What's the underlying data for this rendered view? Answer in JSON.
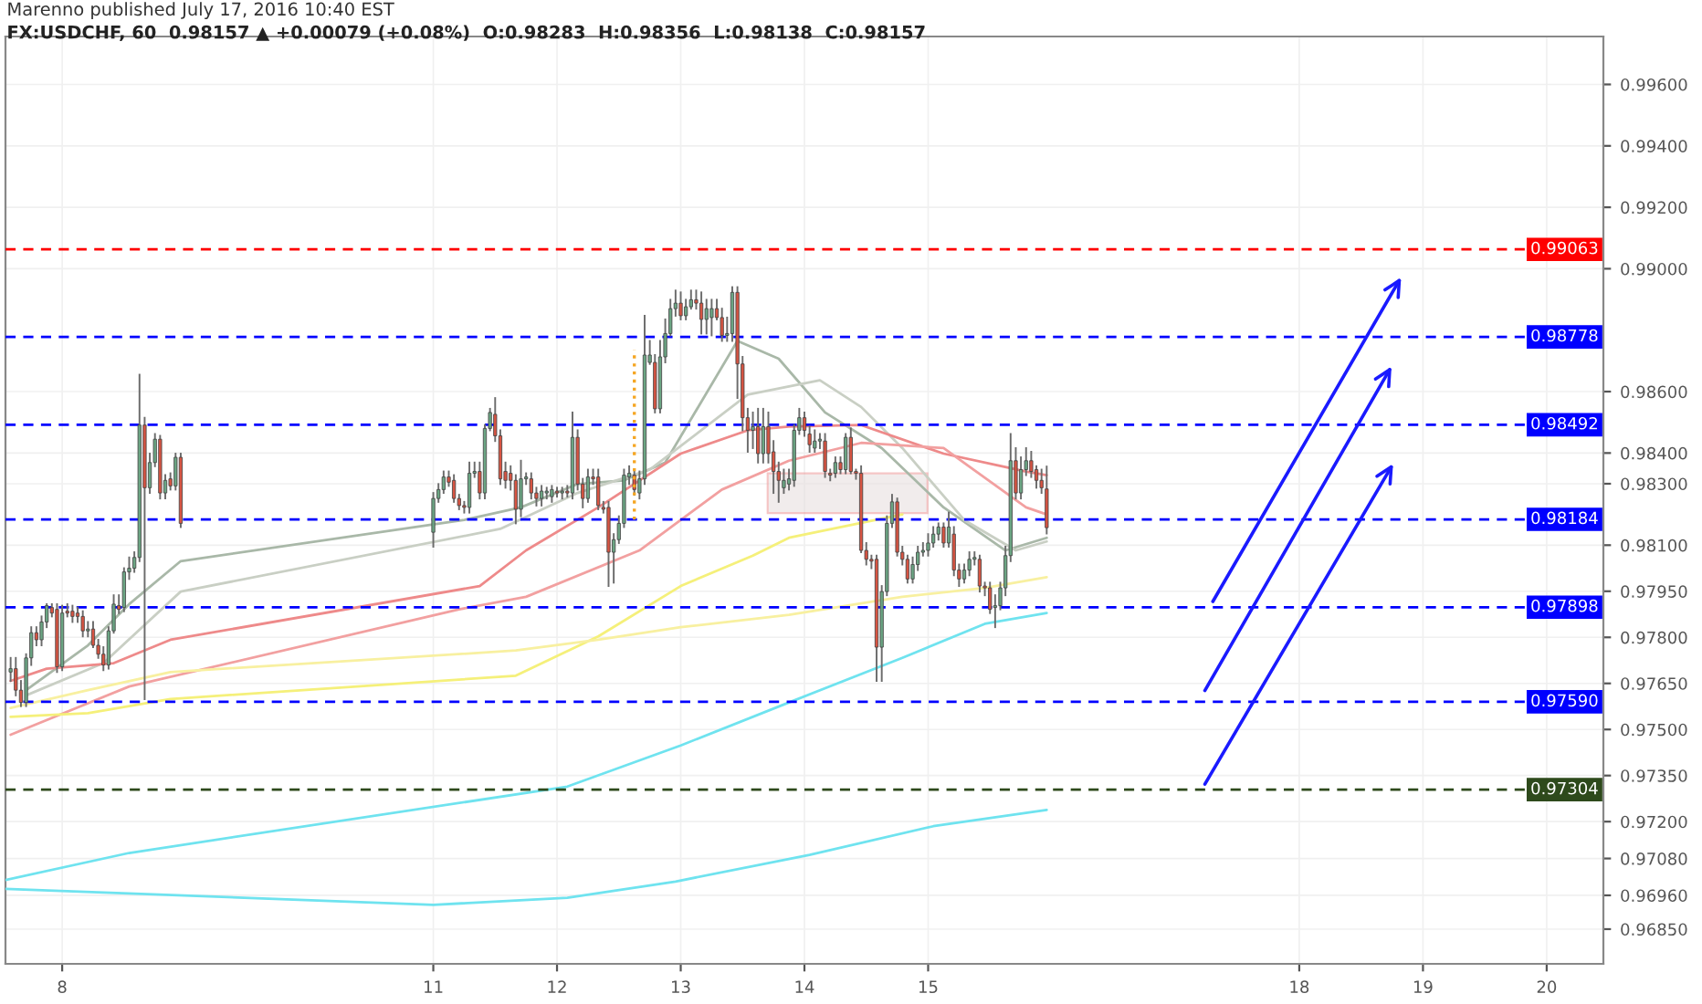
{
  "chart_data": {
    "type": "candlestick",
    "title": "FX:USDCHF, 60  0.98157 ▲ +0.00079 (+0.08%)  O:0.98283  H:0.98356  L:0.98138  C:0.98157",
    "subtitle": "Marenno published July 17, 2016 10:40 EST",
    "x": [
      "2016-07-07T14:00",
      "2016-07-07T15:00",
      "2016-07-07T16:00",
      "2016-07-07T17:00",
      "2016-07-07T18:00",
      "2016-07-07T19:00",
      "2016-07-07T20:00",
      "2016-07-07T21:00",
      "2016-07-07T22:00",
      "2016-07-07T23:00",
      "2016-07-08T00:00",
      "2016-07-08T01:00",
      "2016-07-08T02:00",
      "2016-07-08T03:00",
      "2016-07-08T04:00",
      "2016-07-08T05:00",
      "2016-07-08T06:00",
      "2016-07-08T07:00",
      "2016-07-08T08:00",
      "2016-07-08T09:00",
      "2016-07-08T10:00",
      "2016-07-08T11:00",
      "2016-07-08T12:00",
      "2016-07-08T13:00",
      "2016-07-08T14:00",
      "2016-07-08T15:00",
      "2016-07-08T16:00",
      "2016-07-08T17:00",
      "2016-07-08T18:00",
      "2016-07-08T19:00",
      "2016-07-08T20:00",
      "2016-07-08T21:00",
      "2016-07-08T22:00",
      "2016-07-08T23:00",
      "2016-07-11T00:00",
      "2016-07-11T01:00",
      "2016-07-11T02:00",
      "2016-07-11T03:00",
      "2016-07-11T04:00",
      "2016-07-11T05:00",
      "2016-07-11T06:00",
      "2016-07-11T07:00",
      "2016-07-11T08:00",
      "2016-07-11T09:00",
      "2016-07-11T10:00",
      "2016-07-11T11:00",
      "2016-07-11T12:00",
      "2016-07-11T13:00",
      "2016-07-11T14:00",
      "2016-07-11T15:00",
      "2016-07-11T16:00",
      "2016-07-11T17:00",
      "2016-07-11T18:00",
      "2016-07-11T19:00",
      "2016-07-11T20:00",
      "2016-07-11T21:00",
      "2016-07-11T22:00",
      "2016-07-11T23:00",
      "2016-07-12T00:00",
      "2016-07-12T01:00",
      "2016-07-12T02:00",
      "2016-07-12T03:00",
      "2016-07-12T04:00",
      "2016-07-12T05:00",
      "2016-07-12T06:00",
      "2016-07-12T07:00",
      "2016-07-12T08:00",
      "2016-07-12T09:00",
      "2016-07-12T10:00",
      "2016-07-12T11:00",
      "2016-07-12T12:00",
      "2016-07-12T13:00",
      "2016-07-12T14:00",
      "2016-07-12T15:00",
      "2016-07-12T16:00",
      "2016-07-12T17:00",
      "2016-07-12T18:00",
      "2016-07-12T19:00",
      "2016-07-12T20:00",
      "2016-07-12T21:00",
      "2016-07-12T22:00",
      "2016-07-12T23:00",
      "2016-07-13T00:00",
      "2016-07-13T01:00",
      "2016-07-13T02:00",
      "2016-07-13T03:00",
      "2016-07-13T04:00",
      "2016-07-13T05:00",
      "2016-07-13T06:00",
      "2016-07-13T07:00",
      "2016-07-13T08:00",
      "2016-07-13T09:00",
      "2016-07-13T10:00",
      "2016-07-13T11:00",
      "2016-07-13T12:00",
      "2016-07-13T13:00",
      "2016-07-13T14:00",
      "2016-07-13T15:00",
      "2016-07-13T16:00",
      "2016-07-13T17:00",
      "2016-07-13T18:00",
      "2016-07-13T19:00",
      "2016-07-13T20:00",
      "2016-07-13T21:00",
      "2016-07-13T22:00",
      "2016-07-13T23:00",
      "2016-07-14T00:00",
      "2016-07-14T01:00",
      "2016-07-14T02:00",
      "2016-07-14T03:00",
      "2016-07-14T04:00",
      "2016-07-14T05:00",
      "2016-07-14T06:00",
      "2016-07-14T07:00",
      "2016-07-14T08:00",
      "2016-07-14T09:00",
      "2016-07-14T10:00",
      "2016-07-14T11:00",
      "2016-07-14T12:00",
      "2016-07-14T13:00",
      "2016-07-14T14:00",
      "2016-07-14T15:00",
      "2016-07-14T16:00",
      "2016-07-14T17:00",
      "2016-07-14T18:00",
      "2016-07-14T19:00",
      "2016-07-14T20:00",
      "2016-07-14T21:00",
      "2016-07-14T22:00",
      "2016-07-14T23:00",
      "2016-07-15T00:00",
      "2016-07-15T01:00",
      "2016-07-15T02:00",
      "2016-07-15T03:00",
      "2016-07-15T04:00",
      "2016-07-15T05:00",
      "2016-07-15T06:00",
      "2016-07-15T07:00",
      "2016-07-15T08:00",
      "2016-07-15T09:00",
      "2016-07-15T10:00",
      "2016-07-15T11:00",
      "2016-07-15T12:00",
      "2016-07-15T13:00",
      "2016-07-15T14:00",
      "2016-07-15T15:00",
      "2016-07-15T16:00",
      "2016-07-15T17:00",
      "2016-07-15T18:00",
      "2016-07-15T19:00",
      "2016-07-15T20:00",
      "2016-07-15T21:00",
      "2016-07-15T22:00",
      "2016-07-15T23:00"
    ],
    "ohlc": [
      [
        0.97687,
        0.97733,
        0.97658,
        0.97698
      ],
      [
        0.97698,
        0.97733,
        0.97611,
        0.97628
      ],
      [
        0.97628,
        0.97658,
        0.97576,
        0.97588
      ],
      [
        0.97588,
        0.97745,
        0.97576,
        0.97733
      ],
      [
        0.97733,
        0.97833,
        0.9771,
        0.97815
      ],
      [
        0.97815,
        0.97833,
        0.97774,
        0.97792
      ],
      [
        0.97792,
        0.97868,
        0.97774,
        0.9785
      ],
      [
        0.9785,
        0.97908,
        0.97833,
        0.97903
      ],
      [
        0.97897,
        0.97908,
        0.97868,
        0.97879
      ],
      [
        0.97891,
        0.97908,
        0.97687,
        0.97704
      ],
      [
        0.97704,
        0.97903,
        0.97693,
        0.97879
      ],
      [
        0.97885,
        0.97908,
        0.97868,
        0.97879
      ],
      [
        0.97885,
        0.97903,
        0.9785,
        0.97868
      ],
      [
        0.97879,
        0.97897,
        0.9785,
        0.97868
      ],
      [
        0.97868,
        0.97885,
        0.97803,
        0.97821
      ],
      [
        0.97821,
        0.9785,
        0.97803,
        0.97827
      ],
      [
        0.97827,
        0.9785,
        0.97768,
        0.97774
      ],
      [
        0.97774,
        0.97792,
        0.97733,
        0.97745
      ],
      [
        0.97745,
        0.97768,
        0.97693,
        0.9771
      ],
      [
        0.9771,
        0.97833,
        0.97698,
        0.97821
      ],
      [
        0.97821,
        0.97937,
        0.97815,
        0.97908
      ],
      [
        0.97903,
        0.97937,
        0.97879,
        0.97891
      ],
      [
        0.97897,
        0.98025,
        0.97885,
        0.98013
      ],
      [
        0.98013,
        0.9806,
        0.9799,
        0.98025
      ],
      [
        0.98025,
        0.98077,
        0.98013,
        0.9806
      ],
      [
        0.9806,
        0.98655,
        0.98048,
        0.98491
      ],
      [
        0.98491,
        0.98515,
        0.97599,
        0.98287
      ],
      [
        0.98287,
        0.98398,
        0.9827,
        0.98369
      ],
      [
        0.98369,
        0.98462,
        0.98357,
        0.98445
      ],
      [
        0.98445,
        0.98456,
        0.98252,
        0.9827
      ],
      [
        0.9827,
        0.98328,
        0.98252,
        0.98311
      ],
      [
        0.98316,
        0.98334,
        0.98281,
        0.98293
      ],
      [
        0.98293,
        0.98398,
        0.98281,
        0.98386
      ],
      [
        0.98386,
        0.98398,
        0.98159,
        0.98171
      ],
      [
        0.98142,
        0.9827,
        0.98095,
        0.98252
      ],
      [
        0.98252,
        0.98299,
        0.98241,
        0.98281
      ],
      [
        0.98281,
        0.9834,
        0.9827,
        0.98322
      ],
      [
        0.98322,
        0.9834,
        0.98293,
        0.98305
      ],
      [
        0.98311,
        0.98328,
        0.98241,
        0.98252
      ],
      [
        0.98252,
        0.98264,
        0.98217,
        0.98229
      ],
      [
        0.98229,
        0.98241,
        0.98206,
        0.98223
      ],
      [
        0.98223,
        0.98369,
        0.98206,
        0.98334
      ],
      [
        0.98334,
        0.98369,
        0.98322,
        0.9834
      ],
      [
        0.9834,
        0.98369,
        0.98252,
        0.9827
      ],
      [
        0.9827,
        0.98491,
        0.98252,
        0.9848
      ],
      [
        0.9848,
        0.98544,
        0.98474,
        0.98532
      ],
      [
        0.98526,
        0.98579,
        0.98439,
        0.98456
      ],
      [
        0.98456,
        0.98474,
        0.98299,
        0.98316
      ],
      [
        0.9834,
        0.98369,
        0.98287,
        0.98311
      ],
      [
        0.98334,
        0.98357,
        0.98281,
        0.98311
      ],
      [
        0.98311,
        0.98328,
        0.98171,
        0.98217
      ],
      [
        0.98217,
        0.98375,
        0.98194,
        0.98316
      ],
      [
        0.98316,
        0.98334,
        0.98299,
        0.98322
      ],
      [
        0.98316,
        0.98334,
        0.98252,
        0.9827
      ],
      [
        0.9827,
        0.98287,
        0.98229,
        0.98252
      ],
      [
        0.98252,
        0.98293,
        0.98229,
        0.98276
      ],
      [
        0.9827,
        0.98287,
        0.98252,
        0.98276
      ],
      [
        0.98258,
        0.98293,
        0.98241,
        0.98281
      ],
      [
        0.98276,
        0.98287,
        0.98258,
        0.9827
      ],
      [
        0.9827,
        0.98287,
        0.98252,
        0.98276
      ],
      [
        0.98276,
        0.98293,
        0.98258,
        0.9827
      ],
      [
        0.9827,
        0.98532,
        0.98252,
        0.98451
      ],
      [
        0.98451,
        0.98474,
        0.98281,
        0.98299
      ],
      [
        0.98299,
        0.98316,
        0.98223,
        0.98252
      ],
      [
        0.98252,
        0.98346,
        0.98241,
        0.98322
      ],
      [
        0.98322,
        0.98346,
        0.98299,
        0.98316
      ],
      [
        0.98322,
        0.98346,
        0.98217,
        0.98229
      ],
      [
        0.98223,
        0.98241,
        0.98206,
        0.98217
      ],
      [
        0.98223,
        0.98241,
        0.97967,
        0.98077
      ],
      [
        0.98077,
        0.98136,
        0.97978,
        0.98118
      ],
      [
        0.98118,
        0.98194,
        0.98107,
        0.98171
      ],
      [
        0.98171,
        0.98346,
        0.98159,
        0.98328
      ],
      [
        0.98322,
        0.98357,
        0.98299,
        0.98334
      ],
      [
        0.98328,
        0.98346,
        0.98264,
        0.98281
      ],
      [
        0.9827,
        0.9834,
        0.98252,
        0.98316
      ],
      [
        0.98316,
        0.98847,
        0.98299,
        0.98719
      ],
      [
        0.98695,
        0.98765,
        0.9869,
        0.98719
      ],
      [
        0.98695,
        0.98719,
        0.98532,
        0.98544
      ],
      [
        0.98544,
        0.98765,
        0.98532,
        0.98713
      ],
      [
        0.98713,
        0.98835,
        0.98695,
        0.98789
      ],
      [
        0.98789,
        0.98899,
        0.98783,
        0.9887
      ],
      [
        0.9887,
        0.98929,
        0.98847,
        0.98888
      ],
      [
        0.98888,
        0.98923,
        0.98835,
        0.98847
      ],
      [
        0.98847,
        0.98899,
        0.98835,
        0.98876
      ],
      [
        0.98876,
        0.98929,
        0.9887,
        0.98899
      ],
      [
        0.98899,
        0.98929,
        0.9887,
        0.98888
      ],
      [
        0.98888,
        0.98923,
        0.98789,
        0.98835
      ],
      [
        0.98835,
        0.98899,
        0.98789,
        0.9887
      ],
      [
        0.98841,
        0.98899,
        0.98783,
        0.9887
      ],
      [
        0.9887,
        0.98899,
        0.98835,
        0.98841
      ],
      [
        0.98841,
        0.9887,
        0.98765,
        0.98783
      ],
      [
        0.98783,
        0.98841,
        0.98765,
        0.98789
      ],
      [
        0.98789,
        0.9894,
        0.98765,
        0.98923
      ],
      [
        0.98923,
        0.9894,
        0.98579,
        0.9869
      ],
      [
        0.9869,
        0.98713,
        0.98474,
        0.98515
      ],
      [
        0.98515,
        0.98544,
        0.98404,
        0.98474
      ],
      [
        0.98474,
        0.98532,
        0.98416,
        0.98486
      ],
      [
        0.98486,
        0.98544,
        0.98369,
        0.98398
      ],
      [
        0.98398,
        0.98544,
        0.98369,
        0.98486
      ],
      [
        0.98486,
        0.98532,
        0.98369,
        0.98398
      ],
      [
        0.98404,
        0.98439,
        0.9827,
        0.9834
      ],
      [
        0.9834,
        0.98369,
        0.98241,
        0.98311
      ],
      [
        0.98287,
        0.98346,
        0.9827,
        0.98311
      ],
      [
        0.98299,
        0.98346,
        0.98281,
        0.98316
      ],
      [
        0.98311,
        0.98491,
        0.98293,
        0.98474
      ],
      [
        0.98474,
        0.98544,
        0.98462,
        0.98515
      ],
      [
        0.98515,
        0.98532,
        0.98456,
        0.98474
      ],
      [
        0.98462,
        0.98486,
        0.98404,
        0.98427
      ],
      [
        0.98416,
        0.98474,
        0.98404,
        0.98439
      ],
      [
        0.98439,
        0.98462,
        0.98416,
        0.98445
      ],
      [
        0.98439,
        0.98462,
        0.98322,
        0.9834
      ],
      [
        0.98334,
        0.98346,
        0.98311,
        0.98328
      ],
      [
        0.98334,
        0.98386,
        0.98322,
        0.98369
      ],
      [
        0.98369,
        0.98386,
        0.98334,
        0.98346
      ],
      [
        0.98346,
        0.98462,
        0.98334,
        0.98451
      ],
      [
        0.98451,
        0.9848,
        0.98334,
        0.9834
      ],
      [
        0.9834,
        0.98346,
        0.98316,
        0.98334
      ],
      [
        0.98334,
        0.98357,
        0.98077,
        0.98083
      ],
      [
        0.98083,
        0.98107,
        0.98037,
        0.98054
      ],
      [
        0.98054,
        0.98066,
        0.98025,
        0.98048
      ],
      [
        0.98054,
        0.98066,
        0.97658,
        0.97768
      ],
      [
        0.97768,
        0.97967,
        0.97658,
        0.97949
      ],
      [
        0.97949,
        0.98194,
        0.97937,
        0.98171
      ],
      [
        0.98171,
        0.98264,
        0.98159,
        0.98241
      ],
      [
        0.98241,
        0.98252,
        0.98066,
        0.98077
      ],
      [
        0.98077,
        0.98095,
        0.98037,
        0.98054
      ],
      [
        0.98054,
        0.98066,
        0.97978,
        0.9799
      ],
      [
        0.9799,
        0.9806,
        0.97978,
        0.98037
      ],
      [
        0.98037,
        0.98095,
        0.98019,
        0.98077
      ],
      [
        0.98077,
        0.98107,
        0.98066,
        0.98083
      ],
      [
        0.98083,
        0.98136,
        0.98066,
        0.98107
      ],
      [
        0.98107,
        0.98159,
        0.98095,
        0.98136
      ],
      [
        0.98136,
        0.98171,
        0.98118,
        0.98159
      ],
      [
        0.98159,
        0.98171,
        0.98095,
        0.98107
      ],
      [
        0.98107,
        0.98206,
        0.98095,
        0.98159
      ],
      [
        0.98136,
        0.98159,
        0.98002,
        0.98019
      ],
      [
        0.98019,
        0.98037,
        0.97967,
        0.9799
      ],
      [
        0.9799,
        0.98037,
        0.97978,
        0.98019
      ],
      [
        0.98019,
        0.98077,
        0.98002,
        0.98054
      ],
      [
        0.98054,
        0.98077,
        0.98037,
        0.9806
      ],
      [
        0.98054,
        0.98066,
        0.97949,
        0.97967
      ],
      [
        0.97967,
        0.97978,
        0.97937,
        0.97961
      ],
      [
        0.97961,
        0.97978,
        0.97879,
        0.97891
      ],
      [
        0.97897,
        0.97937,
        0.97833,
        0.97903
      ],
      [
        0.97903,
        0.97978,
        0.97891,
        0.97961
      ],
      [
        0.97961,
        0.98095,
        0.97937,
        0.98066
      ],
      [
        0.98066,
        0.98462,
        0.98048,
        0.98375
      ],
      [
        0.98375,
        0.98416,
        0.98252,
        0.9827
      ],
      [
        0.9827,
        0.98386,
        0.98252,
        0.98346
      ],
      [
        0.98346,
        0.98416,
        0.98328,
        0.98375
      ],
      [
        0.98375,
        0.98404,
        0.98322,
        0.9834
      ],
      [
        0.98346,
        0.98357,
        0.98287,
        0.98311
      ],
      [
        0.98311,
        0.98346,
        0.9827,
        0.98287
      ],
      [
        0.98283,
        0.98356,
        0.98138,
        0.98157
      ]
    ],
    "series": [
      {
        "type": "line",
        "color": "#a9b8a8",
        "x": [
          "2016-07-07T17:00",
          "2016-07-08T05:00",
          "2016-07-08T13:00",
          "2016-07-08T23:00",
          "2016-07-11T06:00",
          "2016-07-11T17:00",
          "2016-07-12T04:00",
          "2016-07-12T13:00",
          "2016-07-12T21:00",
          "2016-07-13T11:00",
          "2016-07-13T19:00",
          "2016-07-14T04:00",
          "2016-07-14T15:00",
          "2016-07-15T03:00",
          "2016-07-15T15:00",
          "2016-07-15T23:00"
        ],
        "values": [
          0.97628,
          0.97774,
          0.97908,
          0.98048,
          0.98182,
          0.98223,
          0.98299,
          0.98311,
          0.98369,
          0.98765,
          0.98707,
          0.98532,
          0.98416,
          0.98223,
          0.98083,
          0.98124
        ]
      },
      {
        "type": "line",
        "color": "#c9cfc4",
        "x": [
          "2016-07-07T17:00",
          "2016-07-08T08:00",
          "2016-07-08T23:00",
          "2016-07-11T13:00",
          "2016-07-12T04:00",
          "2016-07-12T18:00",
          "2016-07-13T13:00",
          "2016-07-14T03:00",
          "2016-07-14T11:00",
          "2016-07-14T19:00",
          "2016-07-15T07:00",
          "2016-07-15T17:00",
          "2016-07-15T23:00"
        ],
        "values": [
          0.97611,
          0.97716,
          0.97949,
          0.98153,
          0.9827,
          0.98346,
          0.9859,
          0.98637,
          0.9855,
          0.98416,
          0.98182,
          0.98083,
          0.98112
        ]
      },
      {
        "type": "line",
        "color": "#ee8a8a",
        "x": [
          "2016-07-07T14:00",
          "2016-07-07T21:00",
          "2016-07-08T10:00",
          "2016-07-08T21:00",
          "2016-07-11T09:00",
          "2016-07-11T18:00",
          "2016-07-12T08:00",
          "2016-07-13T00:00",
          "2016-07-13T13:00",
          "2016-07-13T21:00",
          "2016-07-14T11:00",
          "2016-07-15T03:00",
          "2016-07-15T19:00",
          "2016-07-15T23:00"
        ],
        "values": [
          0.97658,
          0.97698,
          0.97716,
          0.97792,
          0.97967,
          0.98083,
          0.98223,
          0.98398,
          0.98474,
          0.98486,
          0.98491,
          0.98398,
          0.9834,
          0.98328
        ]
      },
      {
        "type": "line",
        "color": "#f2a0a0",
        "x": [
          "2016-07-07T14:00",
          "2016-07-08T13:00",
          "2016-07-11T05:00",
          "2016-07-11T18:00",
          "2016-07-12T16:00",
          "2016-07-13T08:00",
          "2016-07-13T21:00",
          "2016-07-14T11:00",
          "2016-07-15T03:00",
          "2016-07-15T19:00",
          "2016-07-15T23:00"
        ],
        "values": [
          0.97483,
          0.9764,
          0.97891,
          0.97932,
          0.98083,
          0.98281,
          0.98375,
          0.98433,
          0.98416,
          0.98223,
          0.982
        ]
      },
      {
        "type": "line",
        "color": "#f5f07a",
        "x": [
          "2016-07-07T14:00",
          "2016-07-08T05:00",
          "2016-07-08T21:00",
          "2016-07-11T16:00",
          "2016-07-12T08:00",
          "2016-07-13T00:00",
          "2016-07-13T14:00",
          "2016-07-13T21:00",
          "2016-07-14T19:00"
        ],
        "values": [
          0.97541,
          0.97553,
          0.97599,
          0.97675,
          0.97803,
          0.97967,
          0.98066,
          0.98124,
          0.982
        ]
      },
      {
        "type": "line",
        "color": "#f8f0a0",
        "x": [
          "2016-07-07T14:00",
          "2016-07-08T05:00",
          "2016-07-08T21:00",
          "2016-07-11T16:00",
          "2016-07-12T08:00",
          "2016-07-13T00:00",
          "2016-07-13T21:00",
          "2016-07-14T19:00",
          "2016-07-15T11:00",
          "2016-07-15T23:00"
        ],
        "values": [
          0.9757,
          0.97628,
          0.97687,
          0.97757,
          0.97792,
          0.97833,
          0.97873,
          0.97932,
          0.97961,
          0.97996
        ]
      },
      {
        "type": "line",
        "color": "#6fe3ef",
        "x": [
          "2016-07-07T13:00",
          "2016-07-08T13:00",
          "2016-07-12T02:00",
          "2016-07-13T00:00",
          "2016-07-13T21:00",
          "2016-07-14T19:00",
          "2016-07-15T11:00",
          "2016-07-15T23:00"
        ],
        "values": [
          0.9701,
          0.97098,
          0.97314,
          0.97448,
          0.97588,
          0.97733,
          0.97844,
          0.97879
        ]
      },
      {
        "type": "line",
        "color": "#6fe3ef",
        "x": [
          "2016-07-07T13:00",
          "2016-07-11T00:00",
          "2016-07-12T02:00",
          "2016-07-12T23:00",
          "2016-07-14T01:00",
          "2016-07-15T01:00",
          "2016-07-15T23:00"
        ],
        "values": [
          0.96981,
          0.96929,
          0.96952,
          0.97005,
          0.97092,
          0.97185,
          0.97238
        ]
      }
    ],
    "xlim": [
      "2016-07-07T13:00",
      "2016-07-20T11:00"
    ],
    "ylim": [
      0.96737,
      0.99756
    ],
    "xticks": [
      {
        "value": "2016-07-08",
        "label": "8"
      },
      {
        "value": "2016-07-11",
        "label": "11"
      },
      {
        "value": "2016-07-12",
        "label": "12"
      },
      {
        "value": "2016-07-13",
        "label": "13"
      },
      {
        "value": "2016-07-14",
        "label": "14"
      },
      {
        "value": "2016-07-15",
        "label": "15"
      },
      {
        "value": "2016-07-18",
        "label": "18"
      },
      {
        "value": "2016-07-19",
        "label": "19"
      },
      {
        "value": "2016-07-20",
        "label": "20"
      }
    ],
    "yticks": [
      {
        "value": 0.996,
        "label": "0.99600"
      },
      {
        "value": 0.994,
        "label": "0.99400"
      },
      {
        "value": 0.992,
        "label": "0.99200"
      },
      {
        "value": 0.99,
        "label": "0.99000"
      },
      {
        "value": 0.986,
        "label": "0.98600"
      },
      {
        "value": 0.984,
        "label": "0.98400"
      },
      {
        "value": 0.983,
        "label": "0.98300"
      },
      {
        "value": 0.981,
        "label": "0.98100"
      },
      {
        "value": 0.9795,
        "label": "0.97950"
      },
      {
        "value": 0.978,
        "label": "0.97800"
      },
      {
        "value": 0.9765,
        "label": "0.97650"
      },
      {
        "value": 0.975,
        "label": "0.97500"
      },
      {
        "value": 0.9735,
        "label": "0.97350"
      },
      {
        "value": 0.972,
        "label": "0.97200"
      },
      {
        "value": 0.9708,
        "label": "0.97080"
      },
      {
        "value": 0.9696,
        "label": "0.96960"
      },
      {
        "value": 0.9685,
        "label": "0.96850"
      }
    ],
    "ref_lines": [
      {
        "axis": "y",
        "value": 0.99063,
        "label": "0.99063",
        "color": "#ff0000",
        "line_style": "dashed"
      },
      {
        "axis": "y",
        "value": 0.98778,
        "label": "0.98778",
        "color": "#0000ff",
        "line_style": "dashed"
      },
      {
        "axis": "y",
        "value": 0.98492,
        "label": "0.98492",
        "color": "#0000ff",
        "line_style": "dashed"
      },
      {
        "axis": "y",
        "value": 0.98184,
        "label": "0.98184",
        "color": "#0000ff",
        "line_style": "dashed"
      },
      {
        "axis": "y",
        "value": 0.97898,
        "label": "0.97898",
        "color": "#0000ff",
        "line_style": "dashed"
      },
      {
        "axis": "y",
        "value": 0.9759,
        "label": "0.97590",
        "color": "#0000ff",
        "line_style": "dashed"
      },
      {
        "axis": "y",
        "value": 0.97304,
        "label": "0.97304",
        "color": "#2e4a1c",
        "line_style": "dashed"
      },
      {
        "axis": "x",
        "value": "2016-07-12T15:00",
        "color": "#f5a623",
        "line_style": "dotted"
      }
    ],
    "grid": true
  }
}
